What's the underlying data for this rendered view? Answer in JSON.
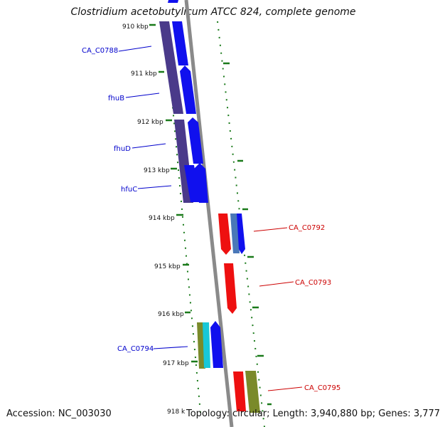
{
  "title": "Clostridium acetobutylicum ATCC 824, complete genome",
  "accession_text": "Accession: NC_003030",
  "topology_text": "Topology: circular; Length: 3,940,880 bp; Genes: 3,777",
  "tick_labels": [
    "910 kbp",
    "911 kbp",
    "912 kbp",
    "913 kbp",
    "914 kbp",
    "915 kbp",
    "916 kbp",
    "917 kbp",
    "918 k"
  ],
  "gene_labels": {
    "ca_c0788": "CA_C0788",
    "fhub": "fhuB",
    "fhud": "fhuD",
    "hfuc": "hfuC",
    "ca_c0794": "CA_C0794",
    "ca_c0792": "CA_C0792",
    "ca_c0793": "CA_C0793",
    "ca_c0795": "CA_C0795"
  },
  "colors": {
    "forward_label": "#0000cc",
    "reverse_label": "#cc0000",
    "axis": "#888888",
    "tick": "#1a7a1a",
    "gene_blue": "#1010ee",
    "gene_indigo": "#4a3a8a",
    "gene_red": "#ee1010",
    "gene_steel": "#4a78b8",
    "gene_olive": "#7a8a2a",
    "gene_cyan": "#18c8d8"
  }
}
